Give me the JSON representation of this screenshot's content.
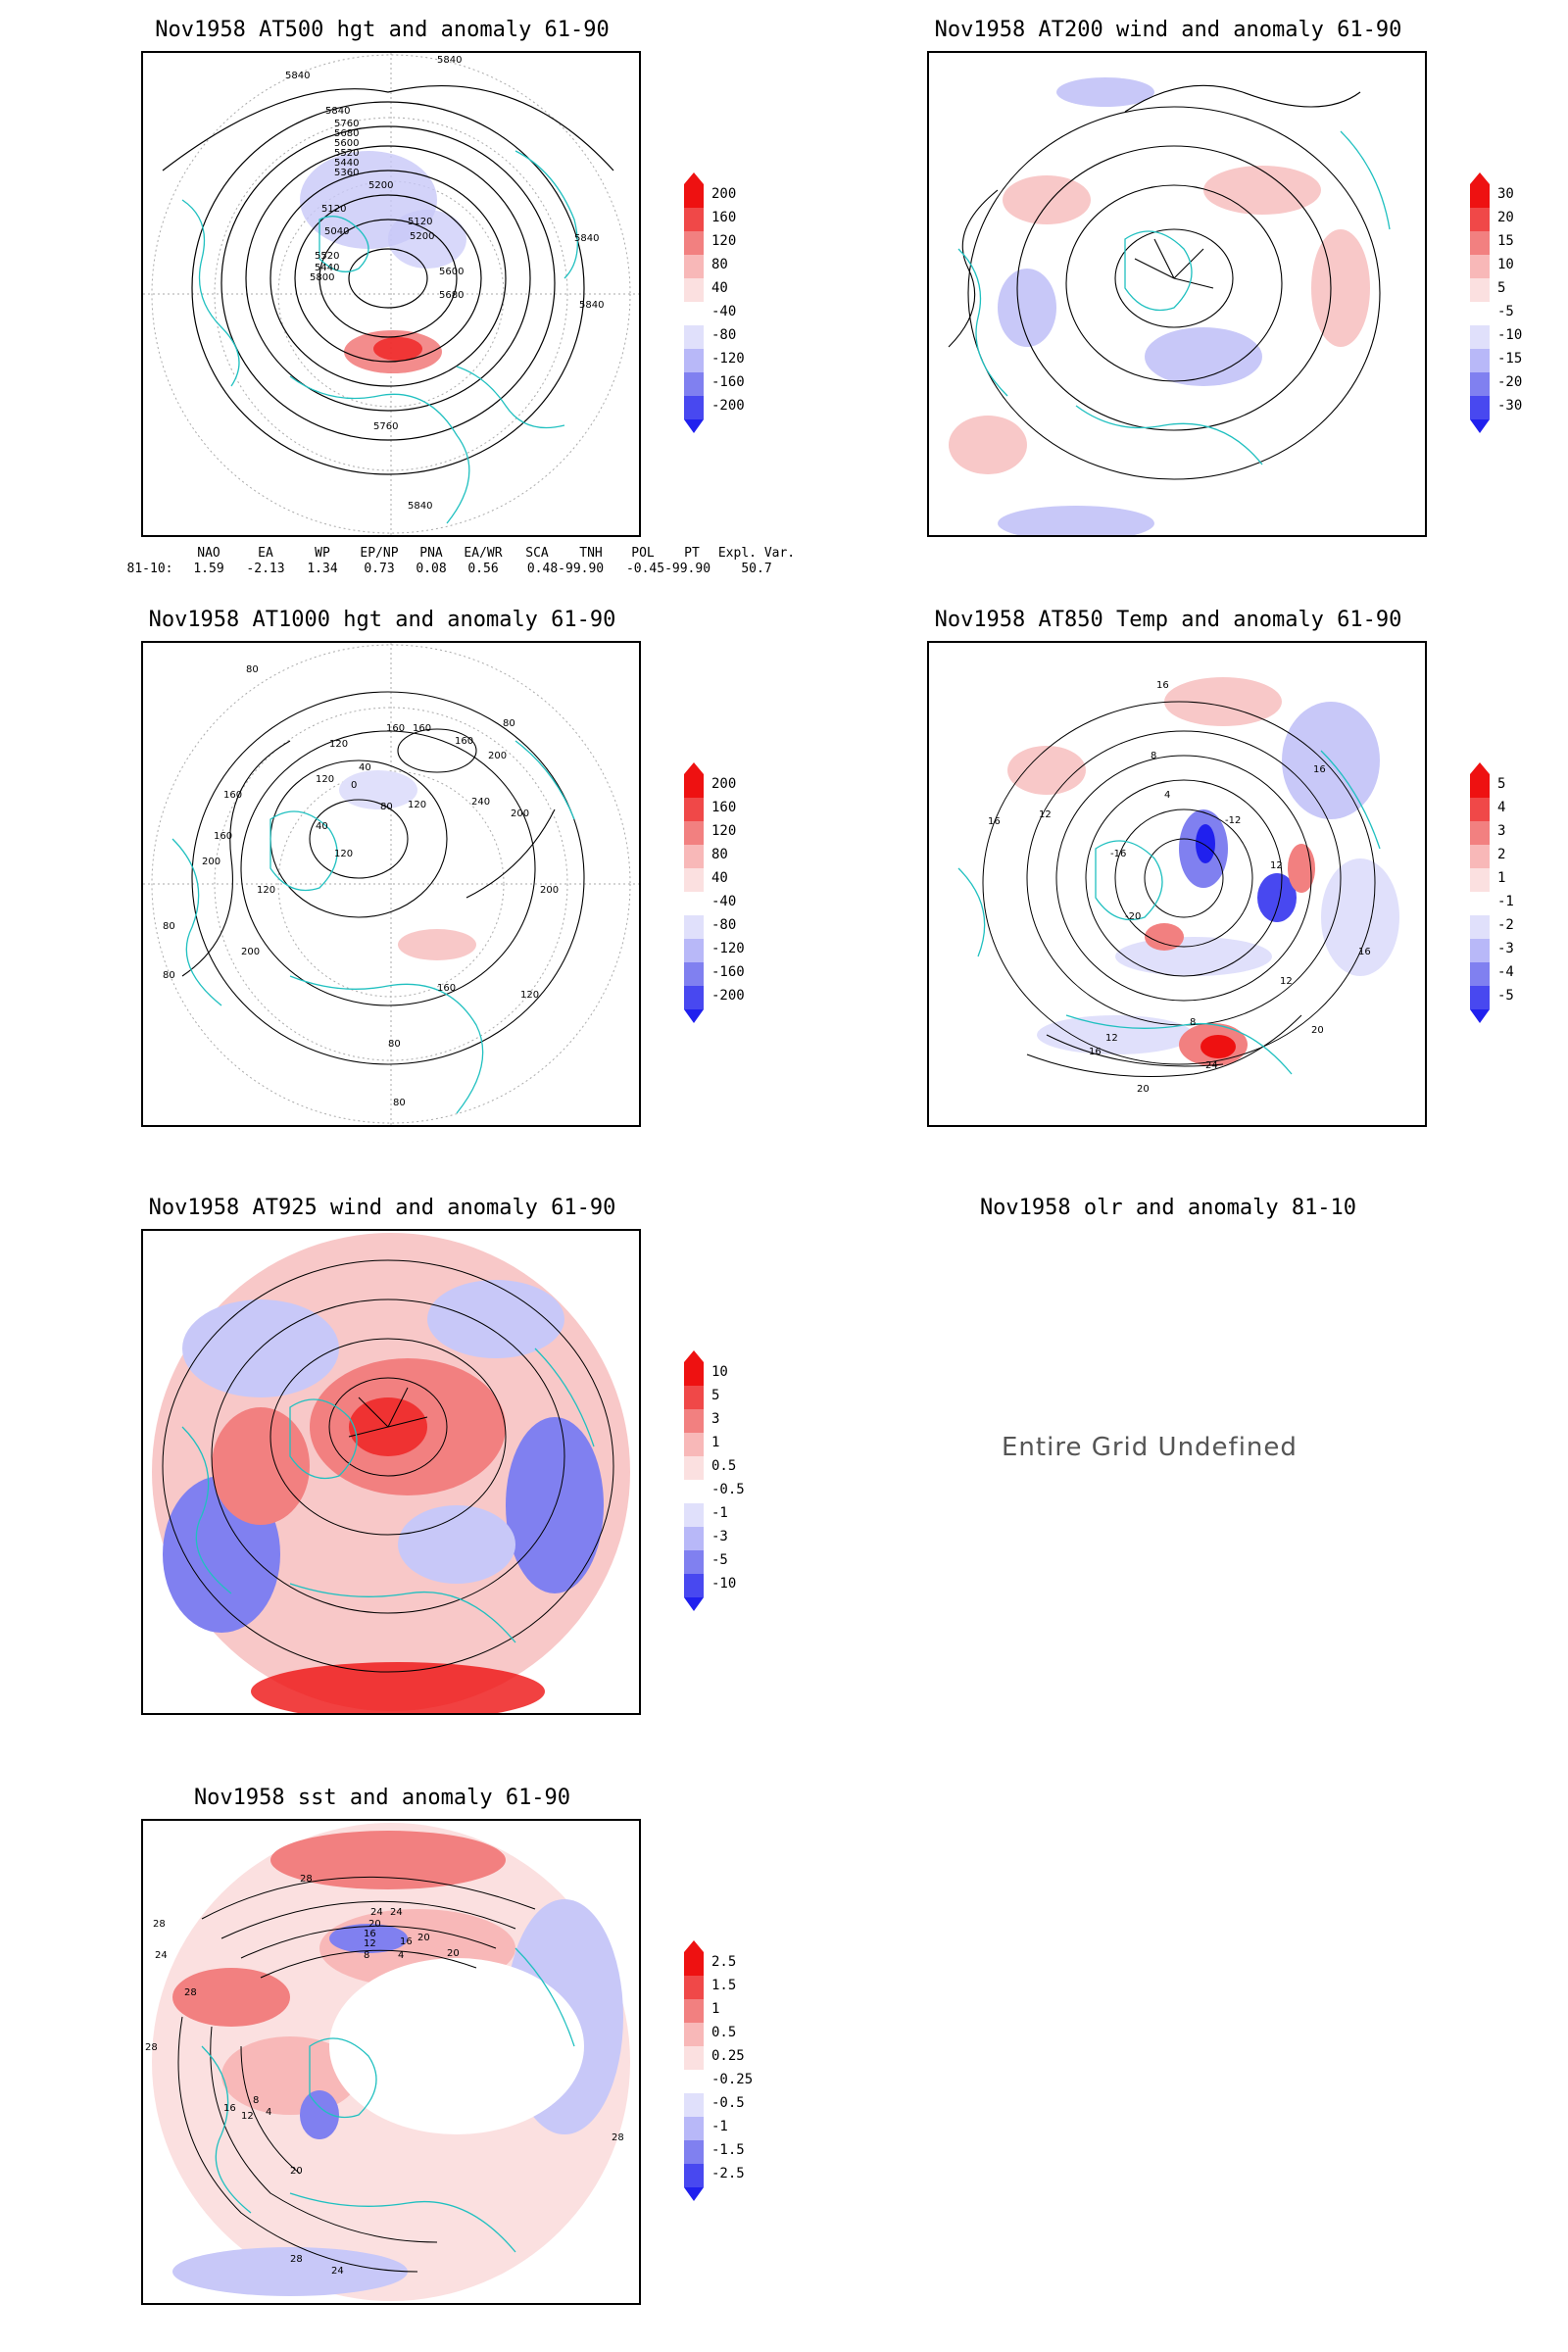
{
  "panels": [
    {
      "id": "z500",
      "title": "Nov1958 AT500 hgt and anomaly 61-90",
      "cbar": [
        "200",
        "160",
        "120",
        "80",
        "40",
        "-40",
        "-80",
        "-120",
        "-160",
        "-200"
      ],
      "contour_labels": [
        "5840",
        "5840",
        "5840",
        "5760",
        "5680",
        "5600",
        "5520",
        "5440",
        "5360",
        "5200",
        "5120",
        "5040",
        "5120",
        "5200",
        "5520",
        "5440",
        "5600",
        "5680",
        "5800",
        "5760",
        "5840",
        "5840",
        "5840"
      ]
    },
    {
      "id": "u200",
      "title": "Nov1958 AT200 wind and anomaly 61-90",
      "cbar": [
        "30",
        "20",
        "15",
        "10",
        "5",
        "-5",
        "-10",
        "-15",
        "-20",
        "-30"
      ]
    },
    {
      "id": "z1000",
      "title": "Nov1958 AT1000 hgt and anomaly 61-90",
      "cbar": [
        "200",
        "160",
        "120",
        "80",
        "40",
        "-40",
        "-80",
        "-120",
        "-160",
        "-200"
      ],
      "contour_labels": [
        "80",
        "120",
        "160",
        "160",
        "160",
        "200",
        "240",
        "200",
        "80",
        "160",
        "120",
        "40",
        "0",
        "80",
        "120",
        "40",
        "160",
        "200",
        "120",
        "80",
        "200",
        "120",
        "80",
        "80",
        "80",
        "120",
        "200",
        "160"
      ]
    },
    {
      "id": "t850",
      "title": "Nov1958 AT850 Temp and anomaly 61-90",
      "cbar": [
        "5",
        "4",
        "3",
        "2",
        "1",
        "-1",
        "-2",
        "-3",
        "-4",
        "-5"
      ],
      "contour_labels": [
        "16",
        "16",
        "16",
        "12",
        "8",
        "4",
        "-12",
        "-16",
        "-20",
        "12",
        "16",
        "12",
        "8",
        "12",
        "16",
        "20",
        "24",
        "20"
      ]
    },
    {
      "id": "u925",
      "title": "Nov1958 AT925 wind and anomaly 61-90",
      "cbar": [
        "10",
        "5",
        "3",
        "1",
        "0.5",
        "-0.5",
        "-1",
        "-3",
        "-5",
        "-10"
      ]
    },
    {
      "id": "olr",
      "title": "Nov1958 olr and anomaly 81-10",
      "undefined_text": "Entire Grid Undefined"
    },
    {
      "id": "sst",
      "title": "Nov1958 sst and anomaly 61-90",
      "cbar": [
        "2.5",
        "1.5",
        "1",
        "0.5",
        "0.25",
        "-0.25",
        "-0.5",
        "-1",
        "-1.5",
        "-2.5"
      ],
      "contour_labels": [
        "28",
        "24",
        "24",
        "20",
        "16",
        "12",
        "8",
        "4",
        "20",
        "16",
        "28",
        "28",
        "24",
        "28",
        "20",
        "16",
        "12",
        "8",
        "4",
        "20",
        "24",
        "28",
        "28"
      ]
    }
  ],
  "teleconnections": {
    "headers": [
      "NAO",
      "EA",
      "WP",
      "EP/NP",
      "PNA",
      "EA/WR",
      "SCA",
      "TNH",
      "POL",
      "PT",
      "Expl. Var."
    ],
    "row_label": "81-10:",
    "values": [
      "1.59",
      "-2.13",
      "1.34",
      "0.73",
      "0.08",
      "0.56",
      "0.48",
      "-99.90",
      "-0.45",
      "-99.90",
      "50.7"
    ]
  },
  "colors": {
    "coast": "#20c0c0",
    "strong_pos": "#ee1111",
    "mid_pos": "#f28080",
    "light_pos": "#f8c8c8",
    "light_neg": "#c8c8f8",
    "mid_neg": "#8080f0",
    "strong_neg": "#2020ee"
  }
}
